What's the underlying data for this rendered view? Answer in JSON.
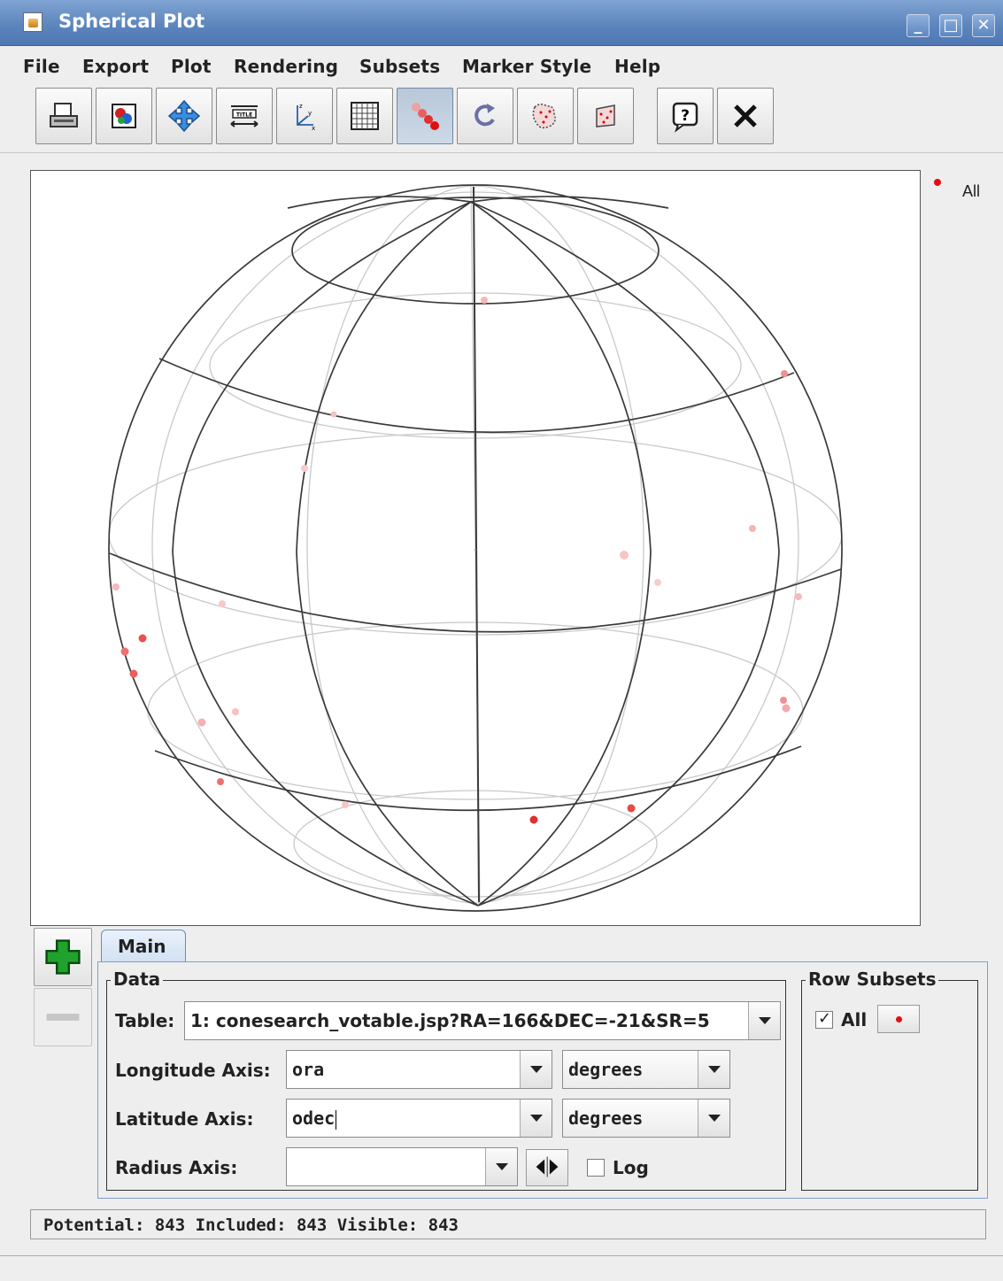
{
  "window": {
    "title": "Spherical Plot"
  },
  "menu": [
    "File",
    "Export",
    "Plot",
    "Rendering",
    "Subsets",
    "Marker Style",
    "Help"
  ],
  "legend": {
    "label": "All",
    "color": "#e01010"
  },
  "tabs": [
    "Main"
  ],
  "data_group": {
    "title": "Data",
    "table_label": "Table:",
    "table_value": "1: conesearch_votable.jsp?RA=166&DEC=-21&SR=5",
    "longitude_label": "Longitude Axis:",
    "longitude_value": "ora",
    "longitude_units": "degrees",
    "latitude_label": "Latitude Axis:",
    "latitude_value": "odec",
    "latitude_units": "degrees",
    "radius_label": "Radius Axis:",
    "radius_value": "",
    "log_label": "Log"
  },
  "row_subsets": {
    "title": "Row Subsets",
    "items": [
      {
        "label": "All",
        "checked": true
      }
    ]
  },
  "status": "Potential: 843 Included: 843 Visible: 843",
  "toolbar_icons": [
    "print-icon",
    "export-image-icon",
    "pan-icon",
    "title-icon",
    "axes-icon",
    "grid-icon",
    "marker-style-icon",
    "rotate-icon",
    "subset-from-visible-icon",
    "subset-from-region-icon",
    "help-icon",
    "close-icon"
  ]
}
